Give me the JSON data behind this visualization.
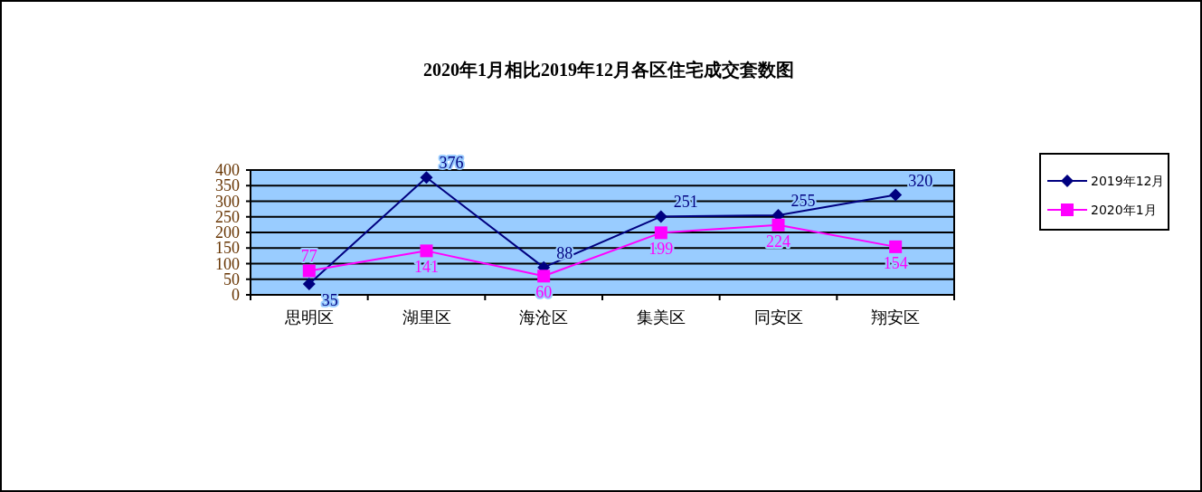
{
  "chart_data": {
    "type": "line",
    "title": "2020年1月相比2019年12月各区住宅成交套数图",
    "categories": [
      "思明区",
      "湖里区",
      "海沧区",
      "集美区",
      "同安区",
      "翔安区"
    ],
    "series": [
      {
        "name": "2019年12月",
        "color": "#000080",
        "marker": "diamond",
        "values": [
          35,
          376,
          88,
          251,
          255,
          320
        ]
      },
      {
        "name": "2020年1月",
        "color": "#ff00ff",
        "marker": "square",
        "values": [
          77,
          141,
          60,
          199,
          224,
          154
        ]
      }
    ],
    "ylim": [
      0,
      400
    ],
    "yticks": [
      0,
      50,
      100,
      150,
      200,
      250,
      300,
      350,
      400
    ],
    "grid": "y",
    "legend": "right",
    "data_labels": true
  }
}
